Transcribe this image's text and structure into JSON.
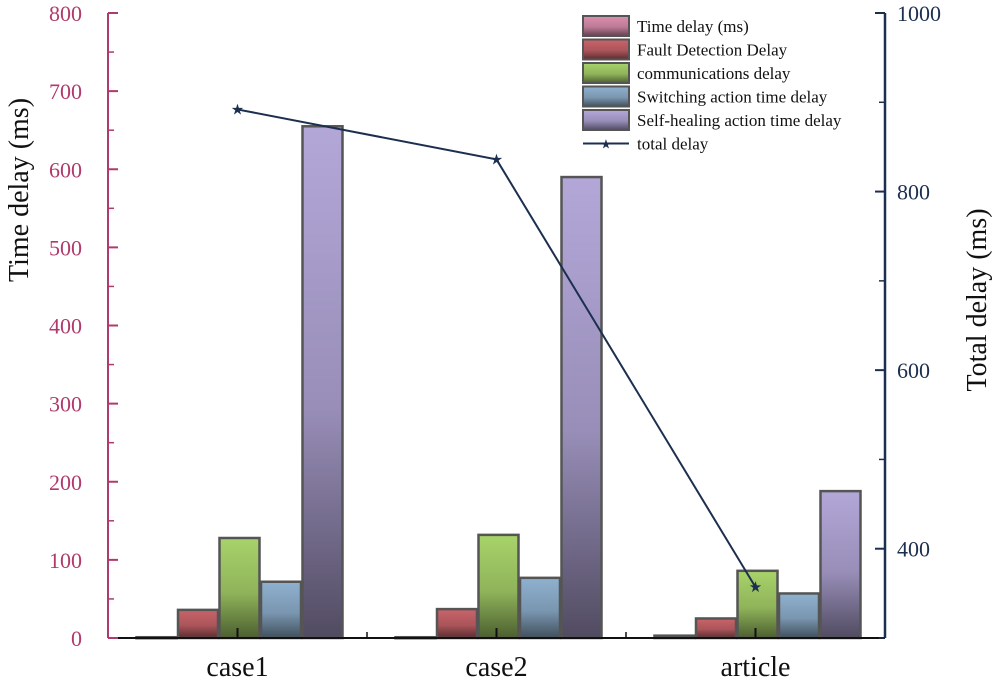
{
  "chart_data": {
    "type": "bar",
    "categories": [
      "case1",
      "case2",
      "article"
    ],
    "series": [
      {
        "name": "Time delay (ms)",
        "values": [
          1,
          1,
          3
        ],
        "color": "#dd8fb0"
      },
      {
        "name": "Fault Detection Delay",
        "values": [
          36,
          37,
          25
        ],
        "color": "#c9646a"
      },
      {
        "name": "communications delay",
        "values": [
          128,
          132,
          86
        ],
        "color": "#a8d36a"
      },
      {
        "name": "Switching action time delay",
        "values": [
          72,
          77,
          57
        ],
        "color": "#8fb1cf"
      },
      {
        "name": "Self-healing action time delay",
        "values": [
          655,
          590,
          188
        ],
        "color": "#b3a7d8"
      }
    ],
    "line_series": {
      "name": "total delay",
      "values": [
        892,
        836,
        357
      ],
      "color": "#1d2f4f"
    },
    "ylabel": "Time delay (ms)",
    "ylabel_right": "Total delay (ms)",
    "ylim": [
      0,
      800
    ],
    "ylim_right": [
      300,
      1000
    ],
    "yticks": [
      "0",
      "100",
      "200",
      "300",
      "400",
      "500",
      "600",
      "700",
      "800"
    ],
    "yticks_right": [
      "400",
      "600",
      "800",
      "1000"
    ],
    "legend_position": "top-right",
    "axis_color_left": "#b03a6b",
    "axis_color_right": "#1d2f4f"
  }
}
